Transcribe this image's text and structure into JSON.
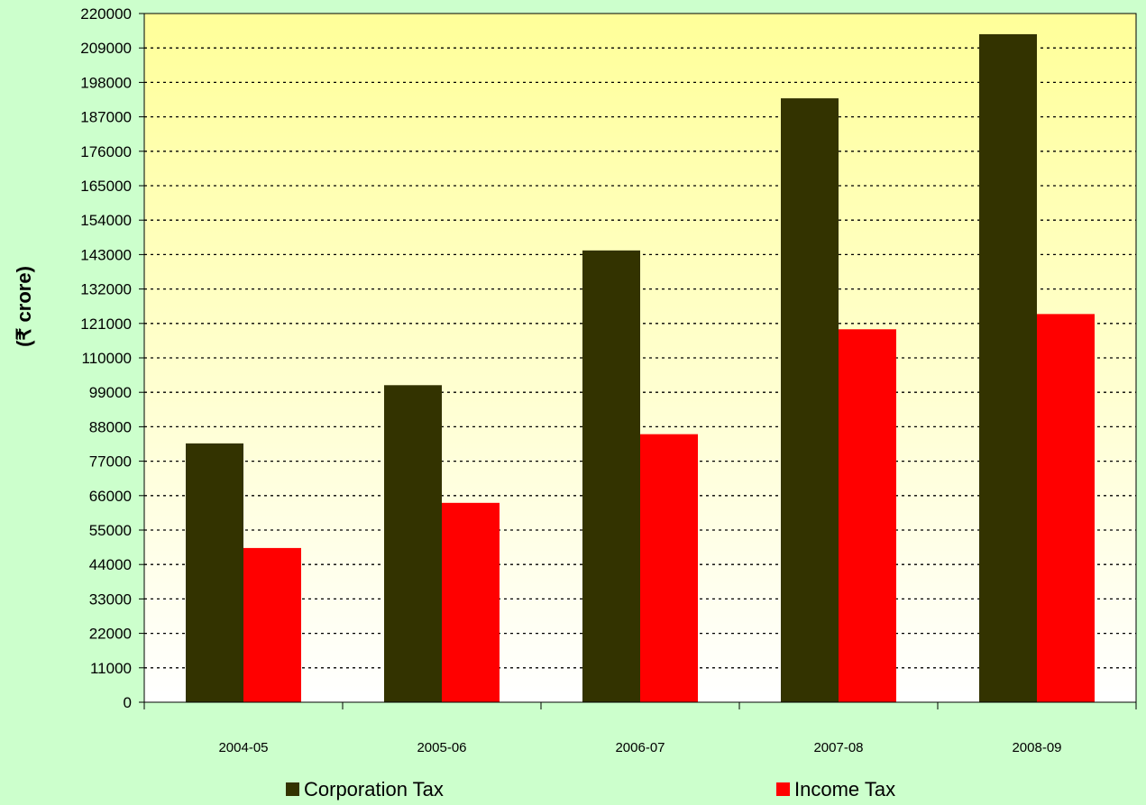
{
  "chart_data": {
    "type": "bar",
    "title": "",
    "xlabel": "",
    "ylabel": "(₹ crore)",
    "ylim": [
      0,
      220000
    ],
    "ytick_step": 11000,
    "yticks": [
      "0",
      "11000",
      "22000",
      "33000",
      "44000",
      "55000",
      "66000",
      "77000",
      "88000",
      "99000",
      "110000",
      "121000",
      "132000",
      "143000",
      "154000",
      "165000",
      "176000",
      "187000",
      "198000",
      "209000",
      "220000"
    ],
    "categories": [
      "2004-05",
      "2005-06",
      "2006-07",
      "2007-08",
      "2008-09"
    ],
    "series": [
      {
        "name": "Corporation Tax",
        "color": "#333300",
        "values": [
          82680,
          101277,
          144318,
          192911,
          213395
        ]
      },
      {
        "name": "Income Tax",
        "color": "#FF0000",
        "values": [
          49268,
          63689,
          85623,
          119132,
          124004
        ]
      }
    ],
    "grid": true,
    "grid_style": "dotted",
    "legend_position": "bottom",
    "plot_background": {
      "top": "#FFFF99",
      "bottom": "#FFFFFF"
    }
  }
}
